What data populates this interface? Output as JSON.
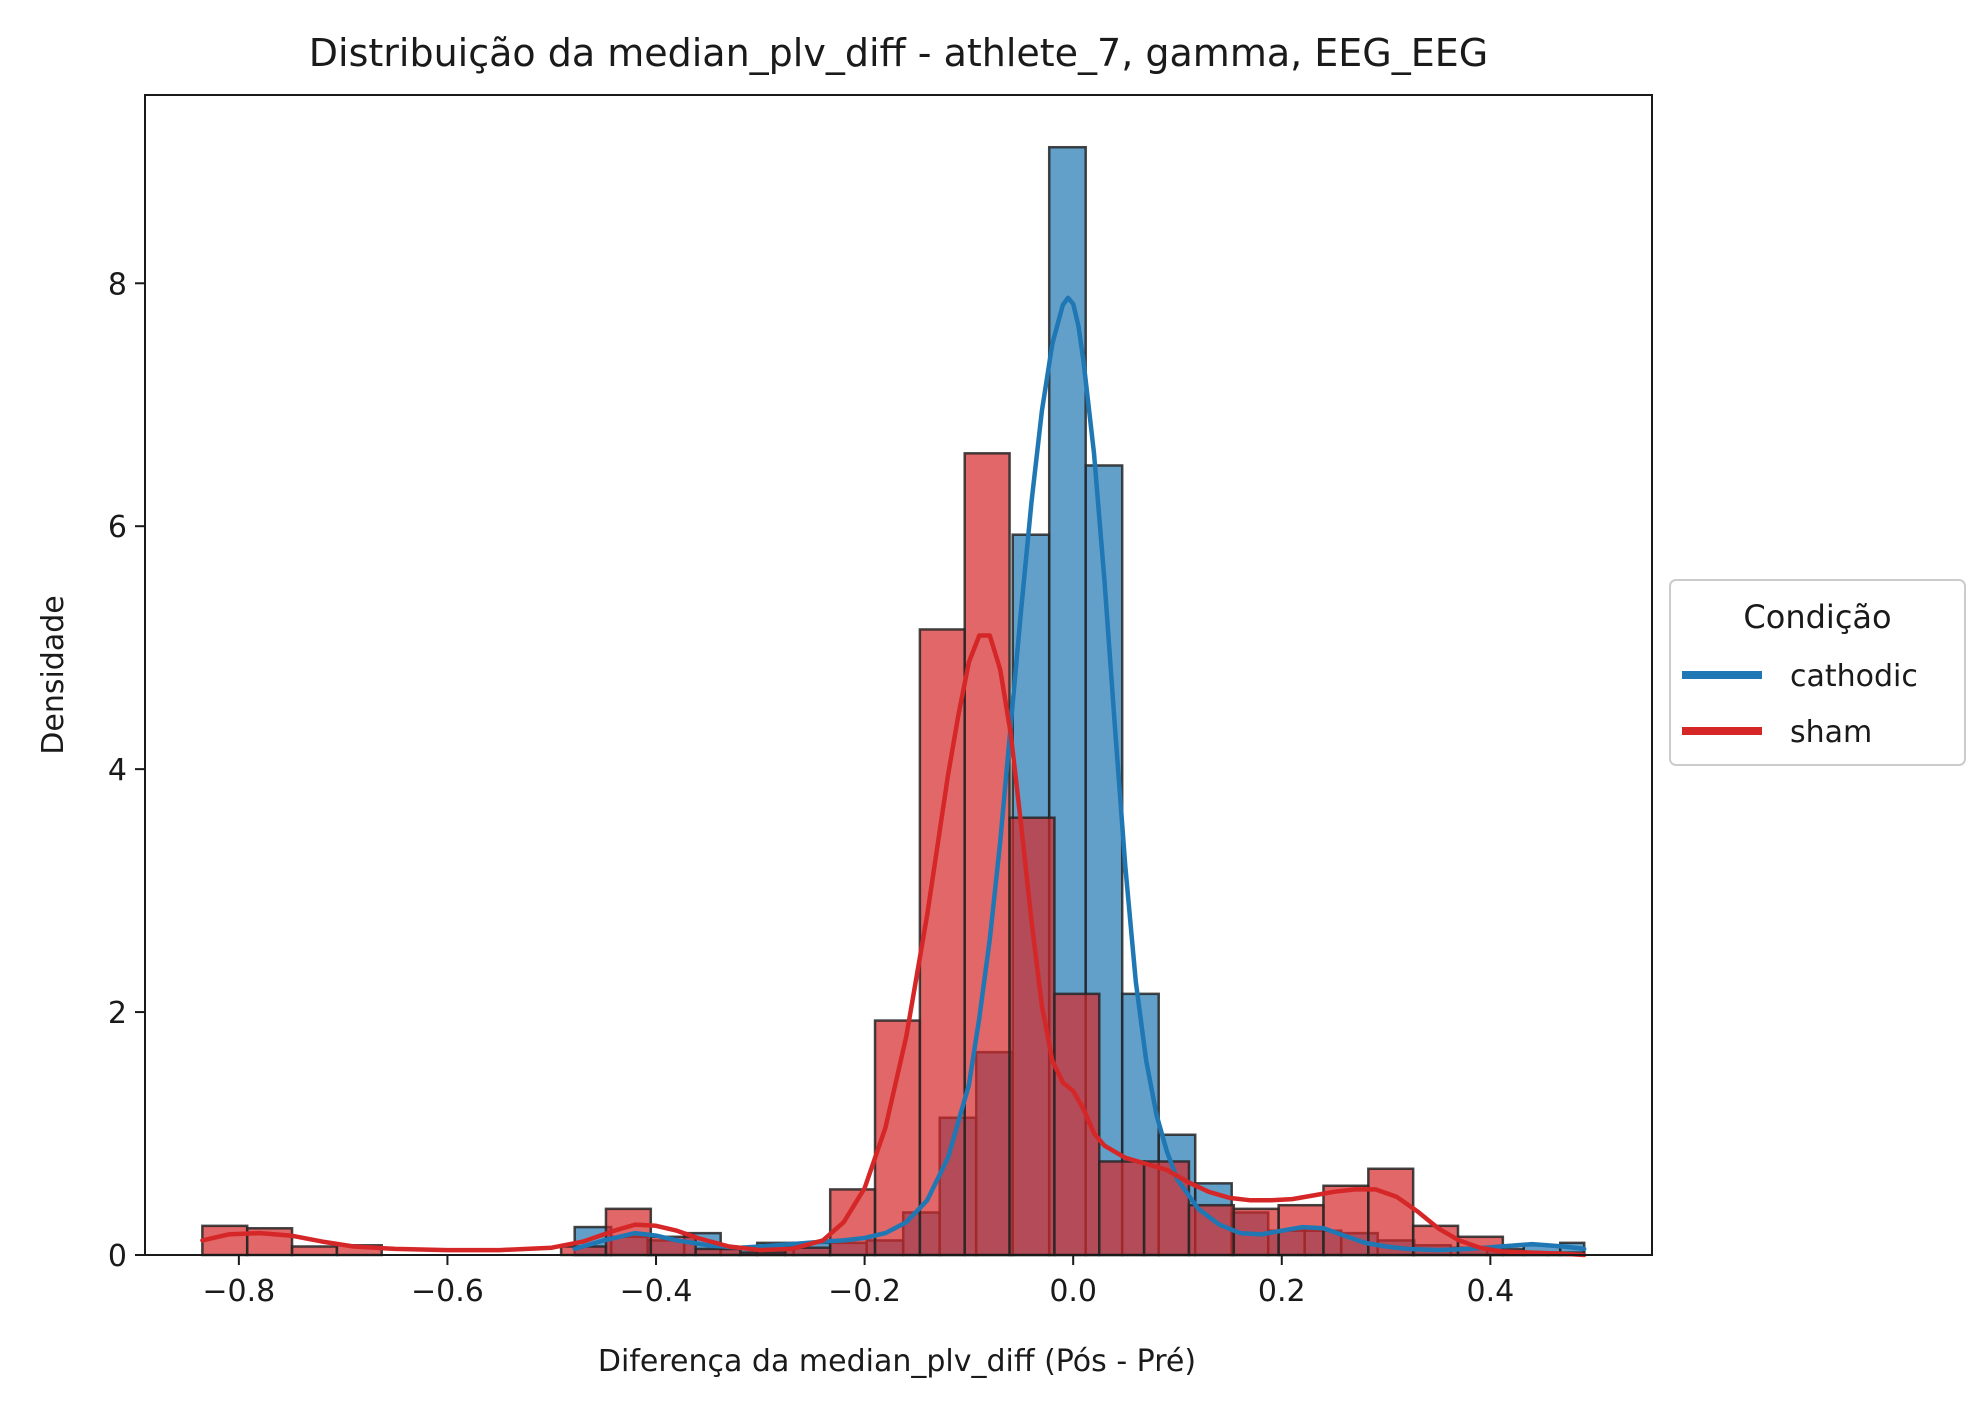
{
  "chart_data": {
    "type": "bar",
    "title": "Distribuição da median_plv_diff - athlete_7, gamma, EEG_EEG",
    "xlabel": "Diferença da median_plv_diff (Pós - Pré)",
    "ylabel": "Densidade",
    "xlim": [
      -0.89,
      0.555
    ],
    "ylim": [
      0,
      9.55
    ],
    "x_ticks": [
      -0.8,
      -0.6,
      -0.4,
      -0.2,
      0.0,
      0.2,
      0.4
    ],
    "x_tick_labels": [
      "−0.8",
      "−0.6",
      "−0.4",
      "−0.2",
      "0.0",
      "0.2",
      "0.4"
    ],
    "y_ticks": [
      0,
      2,
      4,
      6,
      8
    ],
    "y_tick_labels": [
      "0",
      "2",
      "4",
      "6",
      "8"
    ],
    "grid": false,
    "legend": {
      "title": "Condição",
      "placement": "right, outside plot"
    },
    "series": [
      {
        "name": "cathodic",
        "color": "#1f77b4",
        "bins": [
          {
            "x0": -0.478,
            "x1": -0.443,
            "density": 0.23
          },
          {
            "x0": -0.443,
            "x1": -0.408,
            "density": 0.15
          },
          {
            "x0": -0.408,
            "x1": -0.373,
            "density": 0.12
          },
          {
            "x0": -0.373,
            "x1": -0.338,
            "density": 0.18
          },
          {
            "x0": -0.338,
            "x1": -0.303,
            "density": 0.05
          },
          {
            "x0": -0.303,
            "x1": -0.268,
            "density": 0.1
          },
          {
            "x0": -0.268,
            "x1": -0.233,
            "density": 0.1
          },
          {
            "x0": -0.233,
            "x1": -0.198,
            "density": 0.1
          },
          {
            "x0": -0.198,
            "x1": -0.163,
            "density": 0.12
          },
          {
            "x0": -0.163,
            "x1": -0.128,
            "density": 0.35
          },
          {
            "x0": -0.128,
            "x1": -0.093,
            "density": 1.13
          },
          {
            "x0": -0.093,
            "x1": -0.058,
            "density": 1.67
          },
          {
            "x0": -0.058,
            "x1": -0.023,
            "density": 5.93
          },
          {
            "x0": -0.023,
            "x1": 0.012,
            "density": 9.12
          },
          {
            "x0": 0.012,
            "x1": 0.047,
            "density": 6.5
          },
          {
            "x0": 0.047,
            "x1": 0.082,
            "density": 2.15
          },
          {
            "x0": 0.082,
            "x1": 0.117,
            "density": 0.99
          },
          {
            "x0": 0.117,
            "x1": 0.152,
            "density": 0.59
          },
          {
            "x0": 0.152,
            "x1": 0.187,
            "density": 0.35
          },
          {
            "x0": 0.187,
            "x1": 0.222,
            "density": 0.2
          },
          {
            "x0": 0.222,
            "x1": 0.257,
            "density": 0.2
          },
          {
            "x0": 0.257,
            "x1": 0.292,
            "density": 0.18
          },
          {
            "x0": 0.292,
            "x1": 0.327,
            "density": 0.12
          },
          {
            "x0": 0.327,
            "x1": 0.362,
            "density": 0.08
          },
          {
            "x0": 0.362,
            "x1": 0.397,
            "density": 0.06
          },
          {
            "x0": 0.397,
            "x1": 0.432,
            "density": 0.05
          },
          {
            "x0": 0.432,
            "x1": 0.467,
            "density": 0.08
          },
          {
            "x0": 0.467,
            "x1": 0.49,
            "density": 0.1
          }
        ],
        "kde": {
          "x": [
            -0.478,
            -0.45,
            -0.42,
            -0.4,
            -0.38,
            -0.35,
            -0.32,
            -0.3,
            -0.27,
            -0.24,
            -0.22,
            -0.2,
            -0.18,
            -0.16,
            -0.14,
            -0.12,
            -0.1,
            -0.09,
            -0.08,
            -0.07,
            -0.06,
            -0.05,
            -0.04,
            -0.03,
            -0.02,
            -0.01,
            -0.005,
            0.0,
            0.005,
            0.01,
            0.02,
            0.03,
            0.04,
            0.05,
            0.06,
            0.07,
            0.08,
            0.09,
            0.1,
            0.12,
            0.14,
            0.16,
            0.18,
            0.2,
            0.22,
            0.24,
            0.26,
            0.28,
            0.3,
            0.32,
            0.35,
            0.38,
            0.41,
            0.44,
            0.47,
            0.49
          ],
          "y": [
            0.05,
            0.12,
            0.18,
            0.16,
            0.12,
            0.08,
            0.06,
            0.07,
            0.09,
            0.11,
            0.12,
            0.14,
            0.18,
            0.27,
            0.45,
            0.8,
            1.4,
            1.95,
            2.6,
            3.4,
            4.35,
            5.3,
            6.2,
            6.95,
            7.5,
            7.82,
            7.88,
            7.83,
            7.65,
            7.35,
            6.6,
            5.55,
            4.35,
            3.2,
            2.25,
            1.6,
            1.15,
            0.85,
            0.62,
            0.38,
            0.25,
            0.18,
            0.17,
            0.2,
            0.23,
            0.22,
            0.16,
            0.1,
            0.07,
            0.05,
            0.04,
            0.05,
            0.07,
            0.09,
            0.07,
            0.05
          ]
        }
      },
      {
        "name": "sham",
        "color": "#d62728",
        "bins": [
          {
            "x0": -0.835,
            "x1": -0.792,
            "density": 0.24
          },
          {
            "x0": -0.792,
            "x1": -0.749,
            "density": 0.22
          },
          {
            "x0": -0.749,
            "x1": -0.706,
            "density": 0.07
          },
          {
            "x0": -0.706,
            "x1": -0.663,
            "density": 0.08
          },
          {
            "x0": -0.663,
            "x1": -0.62,
            "density": 0.0
          },
          {
            "x0": -0.62,
            "x1": -0.577,
            "density": 0.0
          },
          {
            "x0": -0.577,
            "x1": -0.534,
            "density": 0.0
          },
          {
            "x0": -0.534,
            "x1": -0.491,
            "density": 0.0
          },
          {
            "x0": -0.491,
            "x1": -0.448,
            "density": 0.07
          },
          {
            "x0": -0.448,
            "x1": -0.405,
            "density": 0.38
          },
          {
            "x0": -0.405,
            "x1": -0.362,
            "density": 0.15
          },
          {
            "x0": -0.362,
            "x1": -0.319,
            "density": 0.05
          },
          {
            "x0": -0.319,
            "x1": -0.276,
            "density": 0.02
          },
          {
            "x0": -0.276,
            "x1": -0.233,
            "density": 0.06
          },
          {
            "x0": -0.233,
            "x1": -0.19,
            "density": 0.54
          },
          {
            "x0": -0.19,
            "x1": -0.147,
            "density": 1.93
          },
          {
            "x0": -0.147,
            "x1": -0.104,
            "density": 5.15
          },
          {
            "x0": -0.104,
            "x1": -0.061,
            "density": 6.6
          },
          {
            "x0": -0.061,
            "x1": -0.018,
            "density": 3.6
          },
          {
            "x0": -0.018,
            "x1": 0.025,
            "density": 2.15
          },
          {
            "x0": 0.025,
            "x1": 0.068,
            "density": 0.77
          },
          {
            "x0": 0.068,
            "x1": 0.111,
            "density": 0.77
          },
          {
            "x0": 0.111,
            "x1": 0.154,
            "density": 0.41
          },
          {
            "x0": 0.154,
            "x1": 0.197,
            "density": 0.38
          },
          {
            "x0": 0.197,
            "x1": 0.24,
            "density": 0.41
          },
          {
            "x0": 0.24,
            "x1": 0.283,
            "density": 0.57
          },
          {
            "x0": 0.283,
            "x1": 0.326,
            "density": 0.71
          },
          {
            "x0": 0.326,
            "x1": 0.369,
            "density": 0.24
          },
          {
            "x0": 0.369,
            "x1": 0.412,
            "density": 0.15
          },
          {
            "x0": 0.412,
            "x1": 0.455,
            "density": 0.02
          },
          {
            "x0": 0.455,
            "x1": 0.49,
            "density": 0.02
          }
        ],
        "kde": {
          "x": [
            -0.835,
            -0.81,
            -0.78,
            -0.75,
            -0.72,
            -0.69,
            -0.65,
            -0.6,
            -0.55,
            -0.5,
            -0.47,
            -0.44,
            -0.42,
            -0.4,
            -0.38,
            -0.36,
            -0.33,
            -0.3,
            -0.27,
            -0.24,
            -0.22,
            -0.2,
            -0.18,
            -0.16,
            -0.14,
            -0.12,
            -0.11,
            -0.1,
            -0.09,
            -0.08,
            -0.07,
            -0.06,
            -0.05,
            -0.04,
            -0.03,
            -0.02,
            -0.01,
            0.0,
            0.01,
            0.02,
            0.03,
            0.05,
            0.07,
            0.09,
            0.11,
            0.13,
            0.15,
            0.17,
            0.19,
            0.21,
            0.23,
            0.25,
            0.27,
            0.29,
            0.31,
            0.33,
            0.35,
            0.37,
            0.39,
            0.41,
            0.44,
            0.47,
            0.49
          ],
          "y": [
            0.12,
            0.17,
            0.18,
            0.16,
            0.11,
            0.07,
            0.05,
            0.04,
            0.04,
            0.06,
            0.11,
            0.2,
            0.25,
            0.24,
            0.2,
            0.14,
            0.07,
            0.04,
            0.05,
            0.12,
            0.27,
            0.55,
            1.05,
            1.8,
            2.8,
            3.95,
            4.45,
            4.88,
            5.1,
            5.1,
            4.82,
            4.3,
            3.55,
            2.75,
            2.05,
            1.6,
            1.42,
            1.35,
            1.2,
            1.0,
            0.9,
            0.8,
            0.75,
            0.7,
            0.6,
            0.52,
            0.47,
            0.45,
            0.45,
            0.46,
            0.49,
            0.52,
            0.54,
            0.54,
            0.48,
            0.36,
            0.22,
            0.12,
            0.06,
            0.03,
            0.02,
            0.01,
            0.0
          ]
        }
      }
    ]
  }
}
